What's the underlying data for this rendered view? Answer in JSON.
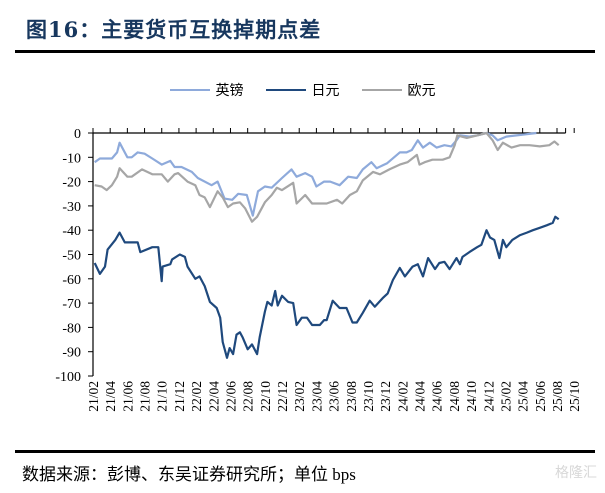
{
  "title": "图16：主要货币互换掉期点差",
  "footer": "数据来源：彭博、东吴证券研究所；单位 bps",
  "watermark": "格隆汇",
  "chart_data": {
    "type": "line",
    "title": "主要货币互换掉期点差",
    "xlabel": "",
    "ylabel": "bps",
    "x_unit": "months since 2021/02",
    "xlim": [
      0,
      55
    ],
    "ylim": [
      -100,
      0
    ],
    "yticks": [
      0,
      -10,
      -20,
      -30,
      -40,
      -50,
      -60,
      -70,
      -80,
      -90,
      -100
    ],
    "xtick_labels": [
      "21/02",
      "21/04",
      "21/06",
      "21/08",
      "21/10",
      "21/12",
      "22/02",
      "22/04",
      "22/06",
      "22/08",
      "22/10",
      "22/12",
      "23/02",
      "23/04",
      "23/06",
      "23/08",
      "23/10",
      "23/12",
      "24/02",
      "24/04",
      "24/06",
      "24/08",
      "24/10",
      "24/12",
      "25/02",
      "25/04",
      "25/06",
      "25/08",
      "25/10"
    ],
    "legend_position": "top-center",
    "grid": false,
    "series": [
      {
        "name": "英镑",
        "color": "#8eaadb",
        "points": [
          [
            0.2,
            -12
          ],
          [
            0.8,
            -10.5
          ],
          [
            2.2,
            -10.5
          ],
          [
            2.8,
            -8
          ],
          [
            3.1,
            -4
          ],
          [
            4.0,
            -10
          ],
          [
            4.5,
            -10
          ],
          [
            5.2,
            -8
          ],
          [
            6.0,
            -8.5
          ],
          [
            6.9,
            -10.5
          ],
          [
            8.0,
            -13
          ],
          [
            9.0,
            -11.5
          ],
          [
            9.5,
            -14
          ],
          [
            10.3,
            -14
          ],
          [
            11.5,
            -16
          ],
          [
            12.2,
            -18.5
          ],
          [
            13.8,
            -21.5
          ],
          [
            14.5,
            -20
          ],
          [
            15.3,
            -27
          ],
          [
            16.2,
            -27.5
          ],
          [
            16.9,
            -25
          ],
          [
            17.9,
            -25.5
          ],
          [
            18.6,
            -34
          ],
          [
            19.2,
            -24
          ],
          [
            20.0,
            -22
          ],
          [
            20.8,
            -22.5
          ],
          [
            22.0,
            -18.5
          ],
          [
            23.1,
            -15
          ],
          [
            23.7,
            -18
          ],
          [
            24.7,
            -16.5
          ],
          [
            25.5,
            -18
          ],
          [
            26.0,
            -22
          ],
          [
            26.9,
            -20
          ],
          [
            27.6,
            -20
          ],
          [
            28.7,
            -21.5
          ],
          [
            29.7,
            -18
          ],
          [
            30.7,
            -18.5
          ],
          [
            31.4,
            -15
          ],
          [
            32.4,
            -12
          ],
          [
            33.0,
            -14.5
          ],
          [
            34.2,
            -12.5
          ],
          [
            35.7,
            -8
          ],
          [
            36.5,
            -8
          ],
          [
            37.1,
            -7
          ],
          [
            37.8,
            -3
          ],
          [
            38.4,
            -6
          ],
          [
            39.2,
            -4
          ],
          [
            40.0,
            -6
          ],
          [
            40.9,
            -5
          ],
          [
            41.7,
            -5.5
          ],
          [
            42.3,
            -3
          ],
          [
            42.7,
            -1
          ],
          [
            43.8,
            -1.5
          ],
          [
            44.7,
            -1
          ],
          [
            45.8,
            0
          ],
          [
            46.5,
            -1
          ],
          [
            47.1,
            -3
          ],
          [
            48.1,
            -1.5
          ],
          [
            49.3,
            -1
          ],
          [
            50.5,
            -0.5
          ],
          [
            51.6,
            0
          ]
        ]
      },
      {
        "name": "日元",
        "color": "#1f497d",
        "points": [
          [
            0.2,
            -53.5
          ],
          [
            0.8,
            -58
          ],
          [
            1.4,
            -55
          ],
          [
            1.7,
            -48
          ],
          [
            2.6,
            -44
          ],
          [
            3.1,
            -41
          ],
          [
            3.7,
            -45
          ],
          [
            5.2,
            -45
          ],
          [
            5.5,
            -49
          ],
          [
            6.9,
            -47
          ],
          [
            7.6,
            -47
          ],
          [
            8.0,
            -61
          ],
          [
            8.1,
            -55
          ],
          [
            9.0,
            -54
          ],
          [
            9.2,
            -52
          ],
          [
            10.1,
            -50
          ],
          [
            10.7,
            -51
          ],
          [
            11.0,
            -55
          ],
          [
            11.9,
            -60
          ],
          [
            12.4,
            -59
          ],
          [
            13.0,
            -63
          ],
          [
            13.6,
            -69.5
          ],
          [
            14.4,
            -72
          ],
          [
            14.8,
            -76
          ],
          [
            15.1,
            -86
          ],
          [
            15.6,
            -92.5
          ],
          [
            15.9,
            -88.5
          ],
          [
            16.3,
            -91
          ],
          [
            16.7,
            -83
          ],
          [
            17.1,
            -82
          ],
          [
            17.4,
            -84
          ],
          [
            18.0,
            -89
          ],
          [
            18.5,
            -87
          ],
          [
            19.1,
            -91
          ],
          [
            19.4,
            -84
          ],
          [
            20.0,
            -73.5
          ],
          [
            20.3,
            -69.5
          ],
          [
            20.8,
            -71
          ],
          [
            21.2,
            -65
          ],
          [
            21.5,
            -71
          ],
          [
            22.0,
            -67
          ],
          [
            22.7,
            -69.5
          ],
          [
            23.3,
            -70
          ],
          [
            23.7,
            -79
          ],
          [
            24.3,
            -76
          ],
          [
            24.9,
            -76
          ],
          [
            25.5,
            -79
          ],
          [
            26.4,
            -79
          ],
          [
            26.9,
            -77
          ],
          [
            27.2,
            -77
          ],
          [
            27.9,
            -69
          ],
          [
            28.7,
            -72
          ],
          [
            29.5,
            -72
          ],
          [
            30.2,
            -78
          ],
          [
            30.7,
            -78
          ],
          [
            31.4,
            -74
          ],
          [
            32.2,
            -69
          ],
          [
            32.8,
            -71.5
          ],
          [
            33.7,
            -68
          ],
          [
            34.3,
            -66
          ],
          [
            34.9,
            -60.5
          ],
          [
            35.7,
            -55.5
          ],
          [
            36.3,
            -59
          ],
          [
            37.2,
            -55
          ],
          [
            37.8,
            -54
          ],
          [
            38.4,
            -59
          ],
          [
            39.0,
            -51.5
          ],
          [
            39.8,
            -56
          ],
          [
            40.3,
            -53.5
          ],
          [
            40.9,
            -53
          ],
          [
            41.5,
            -56
          ],
          [
            42.3,
            -51.5
          ],
          [
            42.7,
            -54
          ],
          [
            43.0,
            -51
          ],
          [
            43.8,
            -49
          ],
          [
            44.7,
            -47
          ],
          [
            45.2,
            -46
          ],
          [
            45.8,
            -40
          ],
          [
            46.2,
            -43
          ],
          [
            46.7,
            -44
          ],
          [
            47.3,
            -51.5
          ],
          [
            47.7,
            -44
          ],
          [
            48.1,
            -47
          ],
          [
            48.8,
            -44
          ],
          [
            49.7,
            -42
          ],
          [
            50.5,
            -41
          ],
          [
            51.2,
            -40
          ],
          [
            52.0,
            -39
          ],
          [
            52.8,
            -38
          ],
          [
            53.5,
            -37
          ],
          [
            53.8,
            -34.5
          ],
          [
            54.2,
            -35.5
          ]
        ]
      },
      {
        "name": "欧元",
        "color": "#a6a6a6",
        "points": [
          [
            0.2,
            -21.5
          ],
          [
            1.0,
            -22
          ],
          [
            1.6,
            -23.5
          ],
          [
            2.2,
            -21.5
          ],
          [
            2.8,
            -18
          ],
          [
            3.1,
            -14.5
          ],
          [
            4.0,
            -18
          ],
          [
            4.5,
            -18
          ],
          [
            5.7,
            -15
          ],
          [
            6.9,
            -17
          ],
          [
            8.0,
            -17
          ],
          [
            8.7,
            -20
          ],
          [
            9.5,
            -17
          ],
          [
            9.9,
            -16.5
          ],
          [
            11.0,
            -20
          ],
          [
            11.9,
            -21.5
          ],
          [
            12.4,
            -25.5
          ],
          [
            13.0,
            -26.5
          ],
          [
            13.6,
            -30.5
          ],
          [
            14.5,
            -24
          ],
          [
            15.1,
            -26.5
          ],
          [
            15.7,
            -30.5
          ],
          [
            16.3,
            -29
          ],
          [
            17.1,
            -28.5
          ],
          [
            17.7,
            -31
          ],
          [
            18.5,
            -36.5
          ],
          [
            19.1,
            -34.5
          ],
          [
            20.0,
            -28.5
          ],
          [
            20.8,
            -25.5
          ],
          [
            21.4,
            -22.5
          ],
          [
            22.0,
            -23.5
          ],
          [
            23.3,
            -20.5
          ],
          [
            23.7,
            -29
          ],
          [
            24.7,
            -25.5
          ],
          [
            25.5,
            -29
          ],
          [
            26.9,
            -29
          ],
          [
            27.2,
            -29
          ],
          [
            28.4,
            -27.5
          ],
          [
            29.0,
            -29
          ],
          [
            29.9,
            -25.5
          ],
          [
            30.7,
            -24
          ],
          [
            31.4,
            -19.5
          ],
          [
            32.6,
            -16
          ],
          [
            33.4,
            -17
          ],
          [
            34.5,
            -15
          ],
          [
            35.7,
            -13
          ],
          [
            36.6,
            -12
          ],
          [
            37.7,
            -9
          ],
          [
            38.0,
            -13
          ],
          [
            38.6,
            -12
          ],
          [
            39.5,
            -11
          ],
          [
            40.7,
            -11
          ],
          [
            41.5,
            -10
          ],
          [
            42.1,
            -5
          ],
          [
            42.4,
            -1
          ],
          [
            43.5,
            -2
          ],
          [
            44.7,
            -1
          ],
          [
            45.8,
            0
          ],
          [
            46.5,
            -3
          ],
          [
            47.1,
            -7
          ],
          [
            47.7,
            -4
          ],
          [
            48.7,
            -6
          ],
          [
            49.7,
            -5
          ],
          [
            50.8,
            -5
          ],
          [
            52.0,
            -5.5
          ],
          [
            53.1,
            -5
          ],
          [
            53.7,
            -3.5
          ],
          [
            54.2,
            -5
          ]
        ]
      }
    ]
  }
}
